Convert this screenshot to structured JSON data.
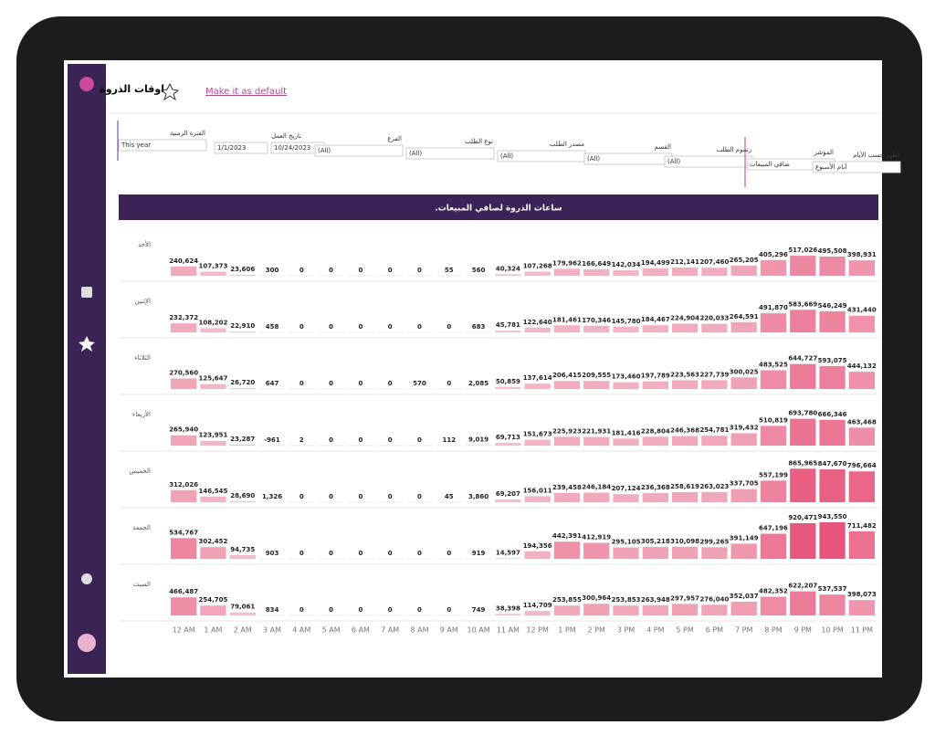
{
  "header": {
    "title": "اوقات الذروة",
    "default_link": "Make it as default"
  },
  "filters": [
    {
      "label": "الفترة الزمنية",
      "values": [
        "This year"
      ]
    },
    {
      "label": "تاريخ العمل",
      "values": [
        "1/1/2023",
        "10/24/2023"
      ]
    },
    {
      "label": "الفرع",
      "values": [
        "(All)"
      ]
    },
    {
      "label": "نوع الطلب",
      "values": [
        "(All)"
      ]
    },
    {
      "label": "مصدر الطلب",
      "values": [
        "(All)"
      ]
    },
    {
      "label": "القسم",
      "values": [
        "(All)"
      ]
    },
    {
      "label": "رسوم الطلب",
      "values": [
        "(All)"
      ]
    },
    {
      "label": "المؤشر",
      "values": [
        "صافي المبيعات"
      ]
    },
    {
      "label": "أظهر حسب الأيام",
      "values": [
        "أيام الأسبوع"
      ]
    }
  ],
  "chart_data": {
    "type": "bar-table",
    "title": ".ساعات الذروة لصافي المبيعات",
    "color_low": "#f4c6d0",
    "color_high": "#e8557c",
    "categories": [
      "12 AM",
      "1 AM",
      "2 AM",
      "3 AM",
      "4 AM",
      "5 AM",
      "6 AM",
      "7 AM",
      "8 AM",
      "9 AM",
      "10 AM",
      "11 AM",
      "12 PM",
      "1 PM",
      "2 PM",
      "3 PM",
      "4 PM",
      "5 PM",
      "6 PM",
      "7 PM",
      "8 PM",
      "9 PM",
      "10 PM",
      "11 PM"
    ],
    "series": [
      {
        "name": "الأحد",
        "values": [
          240624,
          107373,
          23606,
          300,
          0,
          0,
          0,
          0,
          0,
          55,
          560,
          40324,
          107268,
          179962,
          166649,
          142034,
          194499,
          212141,
          207460,
          265205,
          405296,
          517026,
          495508,
          398931
        ],
        "value_labels": [
          "240,624",
          "107,373",
          "23,606",
          "300",
          "0",
          "0",
          "0",
          "0",
          "0",
          "55",
          "560",
          "40,324",
          "107,268",
          "179,962",
          "166,649",
          "142,034",
          "194,499",
          "212,141",
          "207,460",
          "265,205",
          "405,296",
          "517,026",
          "495,508",
          "398,931"
        ]
      },
      {
        "name": "الإثنين",
        "values": [
          232372,
          108202,
          22910,
          458,
          0,
          0,
          0,
          0,
          0,
          0,
          683,
          45781,
          122640,
          181461,
          170346,
          145780,
          184467,
          224904,
          220033,
          264591,
          491870,
          583669,
          546249,
          431440
        ],
        "value_labels": [
          "232,372",
          "108,202",
          "22,910",
          "458",
          "0",
          "0",
          "0",
          "0",
          "0",
          "0",
          "683",
          "45,781",
          "122,640",
          "181,461",
          "170,346",
          "145,780",
          "184,467",
          "224,904",
          "220,033",
          "264,591",
          "491,870",
          "583,669",
          "546,249",
          "431,440"
        ]
      },
      {
        "name": "الثلاثاء",
        "values": [
          270560,
          125647,
          26720,
          647,
          0,
          0,
          0,
          0,
          570,
          0,
          2085,
          50859,
          137614,
          206415,
          209555,
          173460,
          197789,
          223563,
          227739,
          300025,
          483525,
          644727,
          593075,
          444132
        ],
        "value_labels": [
          "270,560",
          "125,647",
          "26,720",
          "647",
          "0",
          "0",
          "0",
          "0",
          "570",
          "0",
          "2,085",
          "50,859",
          "137,614",
          "206,415",
          "209,555",
          "173,460",
          "197,789",
          "223,563",
          "227,739",
          "300,025",
          "483,525",
          "644,727",
          "593,075",
          "444,132"
        ]
      },
      {
        "name": "الأربعاء",
        "values": [
          265940,
          123951,
          23287,
          -961,
          2,
          0,
          0,
          0,
          0,
          112,
          9019,
          69713,
          151673,
          225923,
          221931,
          181416,
          228804,
          246368,
          254781,
          319432,
          510819,
          693780,
          666346,
          463468
        ],
        "value_labels": [
          "265,940",
          "123,951",
          "23,287",
          "-961",
          "2",
          "0",
          "0",
          "0",
          "0",
          "112",
          "9,019",
          "69,713",
          "151,673",
          "225,923",
          "221,931",
          "181,416",
          "228,804",
          "246,368",
          "254,781",
          "319,432",
          "510,819",
          "693,780",
          "666,346",
          "463,468"
        ]
      },
      {
        "name": "الخميس",
        "values": [
          312026,
          146545,
          28690,
          1326,
          0,
          0,
          0,
          0,
          0,
          45,
          3860,
          69207,
          156011,
          239458,
          246184,
          207124,
          236368,
          258619,
          263023,
          337705,
          557199,
          865965,
          847670,
          796664
        ],
        "value_labels": [
          "312,026",
          "146,545",
          "28,690",
          "1,326",
          "0",
          "0",
          "0",
          "0",
          "0",
          "45",
          "3,860",
          "69,207",
          "156,011",
          "239,458",
          "246,184",
          "207,124",
          "236,368",
          "258,619",
          "263,023",
          "337,705",
          "557,199",
          "865,965",
          "847,670",
          "796,664"
        ]
      },
      {
        "name": "الجمعة",
        "values": [
          534767,
          302452,
          94735,
          903,
          0,
          0,
          0,
          0,
          0,
          0,
          919,
          14597,
          194356,
          442391,
          412919,
          295105,
          305218,
          310098,
          299265,
          391149,
          647196,
          920471,
          943550,
          711482
        ],
        "value_labels": [
          "534,767",
          "302,452",
          "94,735",
          "903",
          "0",
          "0",
          "0",
          "0",
          "0",
          "0",
          "919",
          "14,597",
          "194,356",
          "442,391",
          "412,919",
          "295,105",
          "305,218",
          "310,098",
          "299,265",
          "391,149",
          "647,196",
          "920,471",
          "943,550",
          "711,482"
        ]
      },
      {
        "name": "السبت",
        "values": [
          466487,
          254705,
          79061,
          834,
          0,
          0,
          0,
          0,
          0,
          0,
          749,
          38398,
          114709,
          253855,
          300964,
          253853,
          263948,
          297957,
          276040,
          352037,
          482352,
          622207,
          537537,
          398073
        ],
        "value_labels": [
          "466,487",
          "254,705",
          "79,061",
          "834",
          "0",
          "0",
          "0",
          "0",
          "0",
          "0",
          "749",
          "38,398",
          "114,709",
          "253,855",
          "300,964",
          "253,853",
          "263,948",
          "297,957",
          "276,040",
          "352,037",
          "482,352",
          "622,207",
          "537,537",
          "398,073"
        ]
      }
    ]
  }
}
